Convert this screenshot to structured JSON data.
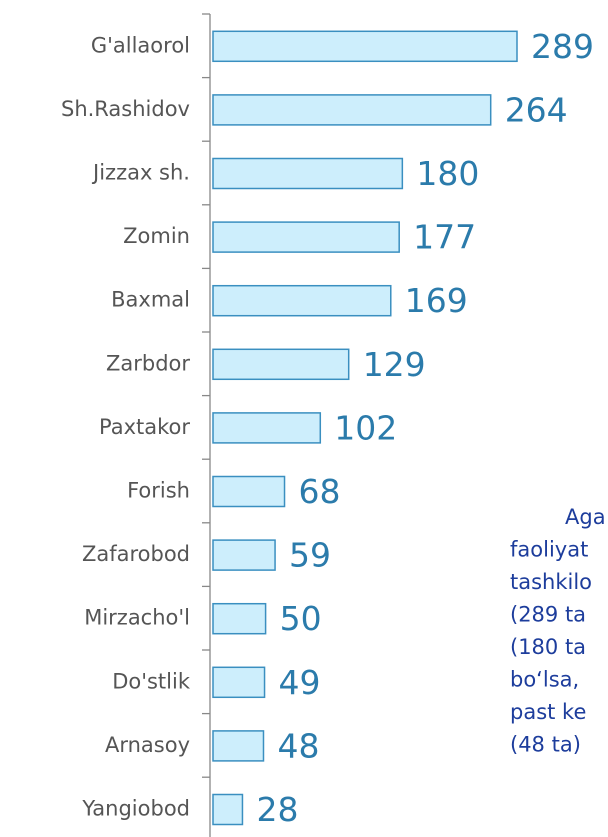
{
  "chart_data": {
    "type": "bar",
    "orientation": "horizontal",
    "categories": [
      "G'allaorol",
      "Sh.Rashidov",
      "Jizzax sh.",
      "Zomin",
      "Baxmal",
      "Zarbdor",
      "Paxtakor",
      "Forish",
      "Zafarobod",
      "Mirzacho'l",
      "Do'stlik",
      "Arnasoy",
      "Yangiobod"
    ],
    "values": [
      289,
      264,
      180,
      177,
      169,
      129,
      102,
      68,
      59,
      50,
      49,
      48,
      28
    ],
    "color": "#cdeefc",
    "edge_color": "#3a8fc0",
    "annotations": [
      "Aga",
      "faoliyat",
      "tashkilo",
      "(289 ta",
      "(180 ta",
      "bo‘lsa,",
      "past ke",
      "(48 ta)"
    ]
  }
}
